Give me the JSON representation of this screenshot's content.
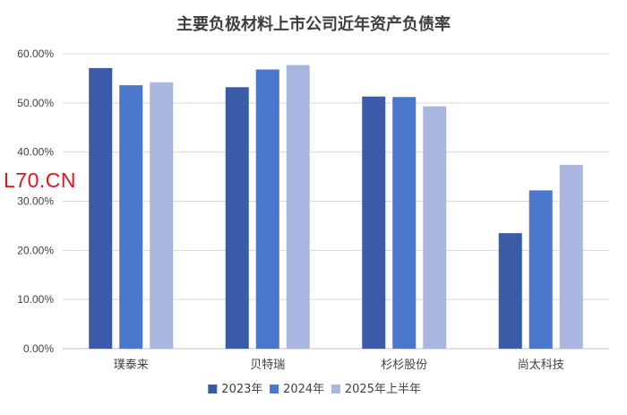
{
  "watermark": "L70.CN",
  "colors": {
    "series": [
      "#3a5ca8",
      "#4a77cc",
      "#a9b7e0"
    ],
    "grid": "#d9d9d9",
    "axis": "#bfbfbf",
    "text": "#404040",
    "title": "#3f3f3f"
  },
  "chart_data": {
    "type": "bar",
    "title": "主要负极材料上市公司近年资产负债率",
    "xlabel": "",
    "ylabel": "",
    "categories": [
      "璞泰来",
      "贝特瑞",
      "杉杉股份",
      "尚太科技"
    ],
    "series": [
      {
        "name": "2023年",
        "values": [
          57.1,
          53.2,
          51.3,
          23.5
        ]
      },
      {
        "name": "2024年",
        "values": [
          53.6,
          56.8,
          51.2,
          32.2
        ]
      },
      {
        "name": "2025年上半年",
        "values": [
          54.2,
          57.7,
          49.3,
          37.4
        ]
      }
    ],
    "ylim": [
      0,
      60
    ],
    "yticks": [
      "0.00%",
      "10.00%",
      "20.00%",
      "30.00%",
      "40.00%",
      "50.00%",
      "60.00%"
    ],
    "grid": true,
    "legend": "bottom"
  }
}
